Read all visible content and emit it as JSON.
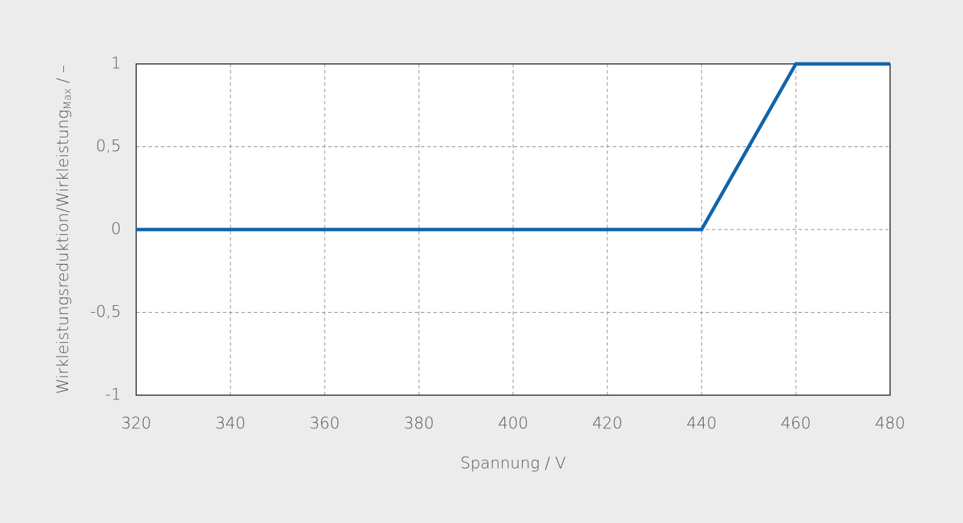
{
  "chart_data": {
    "type": "line",
    "x_label": "Spannung / V",
    "y_label": {
      "main": "Wirkleistungsreduktion/Wirkleistung",
      "subscript": "Max",
      "suffix": " / –"
    },
    "x": [
      320,
      440,
      460,
      480
    ],
    "values": [
      0,
      0,
      1,
      1
    ],
    "color": "#0f64ab",
    "xlim": [
      320,
      480
    ],
    "xticks": [
      320,
      340,
      360,
      380,
      400,
      420,
      440,
      460,
      480
    ],
    "ylim": [
      -1,
      1
    ],
    "yticks": [
      -1,
      {
        "value": -0.5,
        "label": "-0,5"
      },
      0,
      {
        "value": 0.5,
        "label": "0,5"
      },
      1
    ],
    "grid": true
  }
}
